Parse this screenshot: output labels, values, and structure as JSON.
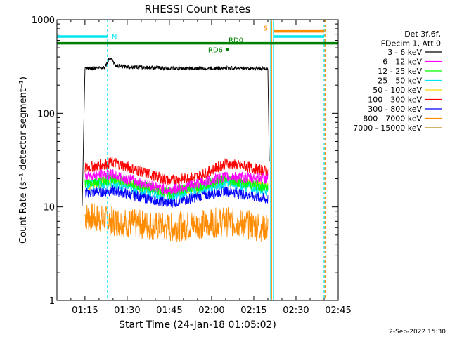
{
  "chart_data": {
    "type": "line",
    "title": "RHESSI Count Rates",
    "xlabel": "Start Time (24-Jan-18 01:05:02)",
    "ylabel": "Count Rate (s⁻¹ detector segment⁻¹)",
    "y_scale": "log",
    "ylim": [
      1,
      1000
    ],
    "xlim": [
      "01:05:02",
      "02:45:00"
    ],
    "x_ticks": [
      "01:15",
      "01:30",
      "01:45",
      "02:00",
      "02:15",
      "02:30",
      "02:45"
    ],
    "y_ticks": [
      "1",
      "10",
      "100",
      "1000"
    ],
    "grid": false,
    "legend_position": "right",
    "legend_header": [
      "Det 3f,6f,",
      "FDecim 1, Att 0"
    ],
    "series": [
      {
        "name": "3 - 6 keV",
        "color": "#000000",
        "x": [
          "01:14",
          "01:15",
          "01:22",
          "01:24",
          "01:26",
          "01:35",
          "01:50",
          "02:05",
          "02:20",
          "02:20:30"
        ],
        "values": [
          10,
          300,
          310,
          400,
          320,
          310,
          300,
          305,
          300,
          30
        ]
      },
      {
        "name": "6 - 12 keV",
        "color": "#ff00ff",
        "x": [
          "01:15",
          "01:25",
          "01:45",
          "02:05",
          "02:20"
        ],
        "values": [
          22,
          22,
          15,
          21,
          20
        ]
      },
      {
        "name": "12 - 25 keV",
        "color": "#00ff00",
        "x": [
          "01:15",
          "01:25",
          "01:45",
          "02:05",
          "02:20"
        ],
        "values": [
          18,
          20,
          14,
          20,
          16
        ]
      },
      {
        "name": "25 - 50 keV",
        "color": "#00e5ee",
        "x": [
          "01:15",
          "01:25",
          "01:45",
          "02:05",
          "02:20"
        ],
        "values": [
          17,
          18,
          13,
          18,
          15
        ]
      },
      {
        "name": "50 - 100 keV",
        "color": "#ffd700",
        "x": [
          "01:15",
          "01:25",
          "01:45",
          "02:05",
          "02:20"
        ],
        "values": [
          17,
          19,
          14,
          19,
          17
        ]
      },
      {
        "name": "100 - 300 keV",
        "color": "#ff0000",
        "x": [
          "01:15",
          "01:25",
          "01:35",
          "01:45",
          "01:55",
          "02:05",
          "02:12",
          "02:20"
        ],
        "values": [
          26,
          30,
          24,
          19,
          21,
          29,
          27,
          24
        ]
      },
      {
        "name": "300 - 800 keV",
        "color": "#0000ff",
        "x": [
          "01:15",
          "01:25",
          "01:45",
          "02:05",
          "02:20"
        ],
        "values": [
          14,
          15,
          11,
          15,
          12
        ]
      },
      {
        "name": "800 - 7000 keV",
        "color": "#ff8c00",
        "x": [
          "01:15",
          "01:25",
          "01:45",
          "02:05",
          "02:20"
        ],
        "values": [
          8,
          7,
          6,
          7,
          6
        ]
      },
      {
        "name": "7000 - 15000 keV",
        "color": "#b8860b",
        "x": [],
        "values": []
      }
    ],
    "annotations": [
      {
        "label": "N",
        "color": "#00e5ee",
        "x_start": "01:05:02",
        "x_end": "01:23",
        "y": 660
      },
      {
        "label": "S",
        "color": "#ff8c00",
        "x_start": "02:22",
        "x_end": "02:40",
        "y": 750
      },
      {
        "label": "",
        "color": "#00e5ee",
        "x_start": "02:22",
        "x_end": "02:40",
        "y": 660
      },
      {
        "label": "RD0",
        "color": "#008000",
        "x_start": "01:05:02",
        "x_end": "02:45:00",
        "y": 560
      },
      {
        "label": "RD6",
        "color": "#008000",
        "x_start": "02:05",
        "x_end": "02:06",
        "y": 480
      }
    ],
    "vertical_markers": [
      {
        "x": "01:23",
        "color": "#00e5ee",
        "style": "dashed"
      },
      {
        "x": "02:21",
        "color": "#00e5ee",
        "style": "solid"
      },
      {
        "x": "02:21:20",
        "color": "#ff8c00",
        "style": "solid"
      },
      {
        "x": "02:22",
        "color": "#00e5ee",
        "style": "solid"
      },
      {
        "x": "02:40",
        "color": "#00e5ee",
        "style": "dashed"
      },
      {
        "x": "02:40:20",
        "color": "#ff8c00",
        "style": "dashed"
      }
    ]
  },
  "footer": {
    "date_stamp": "2-Sep-2022 15:30"
  }
}
